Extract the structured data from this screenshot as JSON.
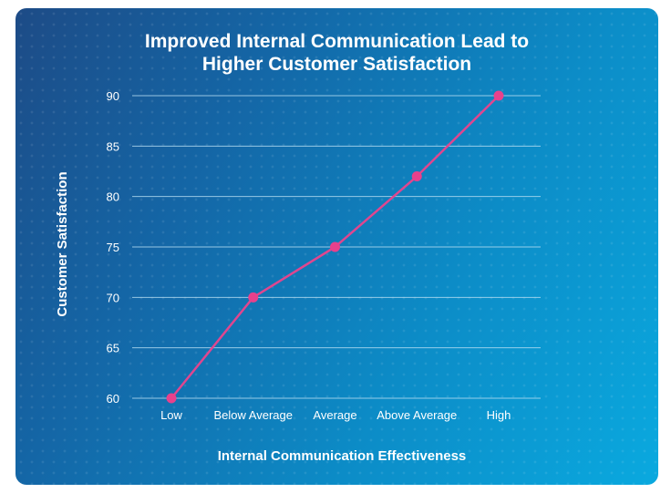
{
  "chart_data": {
    "type": "line",
    "title_lines": [
      "Improved Internal Communication Lead to",
      "Higher Customer Satisfaction"
    ],
    "xlabel": "Internal Communication Effectiveness",
    "ylabel": "Customer Satisfaction",
    "categories": [
      "Low",
      "Below Average",
      "Average",
      "Above Average",
      "High"
    ],
    "series": [
      {
        "values": [
          60,
          70,
          75,
          82,
          90
        ]
      }
    ],
    "ylim": [
      60,
      90
    ],
    "yticks": [
      60,
      65,
      70,
      75,
      80,
      85,
      90
    ],
    "grid": true,
    "colors": {
      "line": "#e0468f",
      "marker": "#e8418c",
      "grid": "#b9dff3",
      "text": "#ffffff"
    }
  }
}
